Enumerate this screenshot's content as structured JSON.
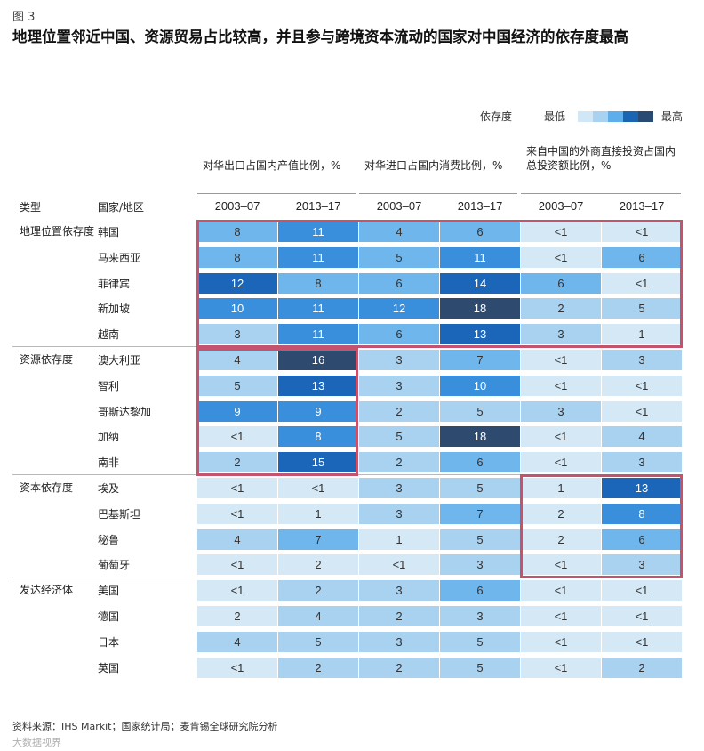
{
  "figure_label": "图 3",
  "title": "地理位置邻近中国、资源贸易占比较高，并且参与跨境资本流动的国家对中国经济的依存度最高",
  "legend": {
    "label": "依存度",
    "low": "最低",
    "high": "最高",
    "colors": [
      "#d2e7f6",
      "#a9d1f0",
      "#5eaeeb",
      "#1a64b4",
      "#2a4a73"
    ]
  },
  "header": {
    "col_type": "类型",
    "col_country": "国家/地区",
    "groups": [
      "对华出口占国内产值比例，%",
      "对华进口占国内消费比例，%",
      "来自中国的外商直接投资占国内总投资额比例，%"
    ],
    "periods": [
      "2003–07",
      "2013–17"
    ]
  },
  "chart_data": {
    "type": "table",
    "title": "地理位置邻近中国、资源贸易占比较高，并且参与跨境资本流动的国家对中国经济的依存度最高",
    "columns": [
      "对华出口占国内产值比例，% 2003–07",
      "对华出口占国内产值比例，% 2013–17",
      "对华进口占国内消费比例，% 2003–07",
      "对华进口占国内消费比例，% 2013–17",
      "来自中国的外商直接投资占国内总投资额比例，% 2003–07",
      "来自中国的外商直接投资占国内总投资额比例，% 2013–17"
    ],
    "groups": [
      {
        "category": "地理位置依存度",
        "rows": [
          {
            "country": "韩国",
            "values": [
              "8",
              "11",
              "4",
              "6",
              "<1",
              "<1"
            ]
          },
          {
            "country": "马来西亚",
            "values": [
              "8",
              "11",
              "5",
              "11",
              "<1",
              "6"
            ]
          },
          {
            "country": "菲律宾",
            "values": [
              "12",
              "8",
              "6",
              "14",
              "6",
              "<1"
            ]
          },
          {
            "country": "新加坡",
            "values": [
              "10",
              "11",
              "12",
              "18",
              "2",
              "5"
            ]
          },
          {
            "country": "越南",
            "values": [
              "3",
              "11",
              "6",
              "13",
              "3",
              "1"
            ]
          }
        ]
      },
      {
        "category": "资源依存度",
        "rows": [
          {
            "country": "澳大利亚",
            "values": [
              "4",
              "16",
              "3",
              "7",
              "<1",
              "3"
            ]
          },
          {
            "country": "智利",
            "values": [
              "5",
              "13",
              "3",
              "10",
              "<1",
              "<1"
            ]
          },
          {
            "country": "哥斯达黎加",
            "values": [
              "9",
              "9",
              "2",
              "5",
              "3",
              "<1"
            ]
          },
          {
            "country": "加纳",
            "values": [
              "<1",
              "8",
              "5",
              "18",
              "<1",
              "4"
            ]
          },
          {
            "country": "南非",
            "values": [
              "2",
              "15",
              "2",
              "6",
              "<1",
              "3"
            ]
          }
        ]
      },
      {
        "category": "资本依存度",
        "rows": [
          {
            "country": "埃及",
            "values": [
              "<1",
              "<1",
              "3",
              "5",
              "1",
              "13"
            ]
          },
          {
            "country": "巴基斯坦",
            "values": [
              "<1",
              "1",
              "3",
              "7",
              "2",
              "8"
            ]
          },
          {
            "country": "秘鲁",
            "values": [
              "4",
              "7",
              "1",
              "5",
              "2",
              "6"
            ]
          },
          {
            "country": "葡萄牙",
            "values": [
              "<1",
              "2",
              "<1",
              "3",
              "<1",
              "3"
            ]
          }
        ]
      },
      {
        "category": "发达经济体",
        "rows": [
          {
            "country": "美国",
            "values": [
              "<1",
              "2",
              "3",
              "6",
              "<1",
              "<1"
            ]
          },
          {
            "country": "德国",
            "values": [
              "2",
              "4",
              "2",
              "3",
              "<1",
              "<1"
            ]
          },
          {
            "country": "日本",
            "values": [
              "4",
              "5",
              "3",
              "5",
              "<1",
              "<1"
            ]
          },
          {
            "country": "英国",
            "values": [
              "<1",
              "2",
              "2",
              "5",
              "<1",
              "2"
            ]
          }
        ]
      }
    ],
    "levels": [
      [
        2,
        3,
        2,
        2,
        0,
        0
      ],
      [
        2,
        3,
        2,
        3,
        0,
        2
      ],
      [
        4,
        2,
        2,
        4,
        2,
        0
      ],
      [
        3,
        3,
        3,
        5,
        1,
        1
      ],
      [
        1,
        3,
        2,
        4,
        1,
        0
      ],
      [
        1,
        5,
        1,
        2,
        0,
        1
      ],
      [
        1,
        4,
        1,
        3,
        0,
        0
      ],
      [
        3,
        3,
        1,
        1,
        1,
        0
      ],
      [
        0,
        3,
        1,
        5,
        0,
        1
      ],
      [
        1,
        4,
        1,
        2,
        0,
        1
      ],
      [
        0,
        0,
        1,
        1,
        0,
        4
      ],
      [
        0,
        0,
        1,
        2,
        0,
        3
      ],
      [
        1,
        2,
        0,
        1,
        0,
        2
      ],
      [
        0,
        0,
        0,
        1,
        0,
        1
      ],
      [
        0,
        1,
        1,
        2,
        0,
        0
      ],
      [
        0,
        1,
        1,
        1,
        0,
        0
      ],
      [
        1,
        1,
        1,
        1,
        0,
        0
      ],
      [
        0,
        1,
        1,
        1,
        0,
        1
      ]
    ],
    "level_colors": [
      "#d4e8f6",
      "#a9d1f0",
      "#6fb6ec",
      "#3a8fdc",
      "#1b66b8",
      "#2f4a6f"
    ],
    "highlight_boxes": [
      "地理位置依存度 – 全部指标",
      "资源依存度 – 对华出口占国内产值比例",
      "资本依存度 – 外商直接投资占比"
    ]
  },
  "source": "资料来源：IHS Markit；国家统计局；麦肯锡全球研究院分析",
  "watermark": "大数据视界"
}
